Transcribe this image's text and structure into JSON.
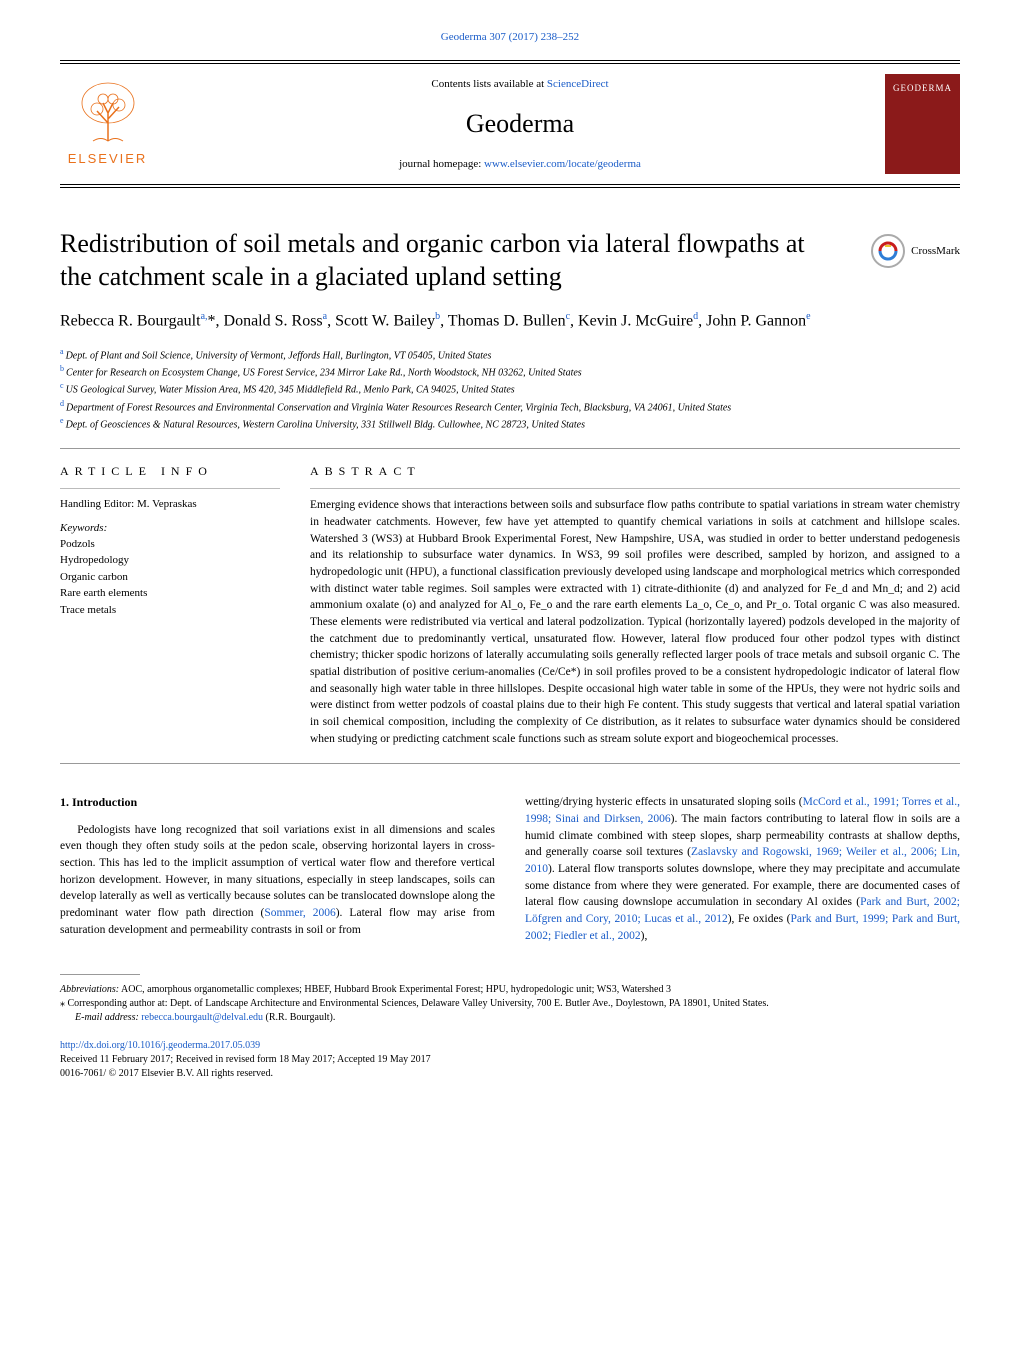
{
  "header": {
    "citation": "Geoderma 307 (2017) 238–252",
    "contents_prefix": "Contents lists available at ",
    "contents_link": "ScienceDirect",
    "journal_name": "Geoderma",
    "homepage_prefix": "journal homepage: ",
    "homepage_link": "www.elsevier.com/locate/geoderma",
    "publisher_wordmark": "ELSEVIER",
    "cover_title": "GEODERMA"
  },
  "article": {
    "title": "Redistribution of soil metals and organic carbon via lateral flowpaths at the catchment scale in a glaciated upland setting",
    "crossmark_label": "CrossMark",
    "authors_html": "Rebecca R. Bourgault<sup>a,</sup>*, Donald S. Ross<sup>a</sup>, Scott W. Bailey<sup>b</sup>, Thomas D. Bullen<sup>c</sup>, Kevin J. McGuire<sup>d</sup>, John P. Gannon<sup>e</sup>",
    "affiliations": [
      {
        "sup": "a",
        "text": "Dept. of Plant and Soil Science, University of Vermont, Jeffords Hall, Burlington, VT 05405, United States"
      },
      {
        "sup": "b",
        "text": "Center for Research on Ecosystem Change, US Forest Service, 234 Mirror Lake Rd., North Woodstock, NH 03262, United States"
      },
      {
        "sup": "c",
        "text": "US Geological Survey, Water Mission Area, MS 420, 345 Middlefield Rd., Menlo Park, CA 94025, United States"
      },
      {
        "sup": "d",
        "text": "Department of Forest Resources and Environmental Conservation and Virginia Water Resources Research Center, Virginia Tech, Blacksburg, VA 24061, United States"
      },
      {
        "sup": "e",
        "text": "Dept. of Geosciences & Natural Resources, Western Carolina University, 331 Stillwell Bldg. Cullowhee, NC 28723, United States"
      }
    ]
  },
  "info": {
    "heading": "ARTICLE INFO",
    "editor_line": "Handling Editor: M. Vepraskas",
    "keywords_label": "Keywords:",
    "keywords": [
      "Podzols",
      "Hydropedology",
      "Organic carbon",
      "Rare earth elements",
      "Trace metals"
    ]
  },
  "abstract": {
    "heading": "ABSTRACT",
    "text": "Emerging evidence shows that interactions between soils and subsurface flow paths contribute to spatial variations in stream water chemistry in headwater catchments. However, few have yet attempted to quantify chemical variations in soils at catchment and hillslope scales. Watershed 3 (WS3) at Hubbard Brook Experimental Forest, New Hampshire, USA, was studied in order to better understand pedogenesis and its relationship to subsurface water dynamics. In WS3, 99 soil profiles were described, sampled by horizon, and assigned to a hydropedologic unit (HPU), a functional classification previously developed using landscape and morphological metrics which corresponded with distinct water table regimes. Soil samples were extracted with 1) citrate-dithionite (d) and analyzed for Fe_d and Mn_d; and 2) acid ammonium oxalate (o) and analyzed for Al_o, Fe_o and the rare earth elements La_o, Ce_o, and Pr_o. Total organic C was also measured. These elements were redistributed via vertical and lateral podzolization. Typical (horizontally layered) podzols developed in the majority of the catchment due to predominantly vertical, unsaturated flow. However, lateral flow produced four other podzol types with distinct chemistry; thicker spodic horizons of laterally accumulating soils generally reflected larger pools of trace metals and subsoil organic C. The spatial distribution of positive cerium-anomalies (Ce/Ce*) in soil profiles proved to be a consistent hydropedologic indicator of lateral flow and seasonally high water table in three hillslopes. Despite occasional high water table in some of the HPUs, they were not hydric soils and were distinct from wetter podzols of coastal plains due to their high Fe content. This study suggests that vertical and lateral spatial variation in soil chemical composition, including the complexity of Ce distribution, as it relates to subsurface water dynamics should be considered when studying or predicting catchment scale functions such as stream solute export and biogeochemical processes."
  },
  "body": {
    "section_heading": "1. Introduction",
    "col1": "Pedologists have long recognized that soil variations exist in all dimensions and scales even though they often study soils at the pedon scale, observing horizontal layers in cross-section. This has led to the implicit assumption of vertical water flow and therefore vertical horizon development. However, in many situations, especially in steep landscapes, soils can develop laterally as well as vertically because solutes can be translocated downslope along the predominant water flow path direction (",
    "ref1": "Sommer, 2006",
    "col1b": "). Lateral flow may arise from saturation development and permeability contrasts in soil or from",
    "col2a": "wetting/drying hysteric effects in unsaturated sloping soils (",
    "ref2": "McCord et al., 1991; Torres et al., 1998; Sinai and Dirksen, 2006",
    "col2b": "). The main factors contributing to lateral flow in soils are a humid climate combined with steep slopes, sharp permeability contrasts at shallow depths, and generally coarse soil textures (",
    "ref3": "Zaslavsky and Rogowski, 1969; Weiler et al., 2006; Lin, 2010",
    "col2c": "). Lateral flow transports solutes downslope, where they may precipitate and accumulate some distance from where they were generated. For example, there are documented cases of lateral flow causing downslope accumulation in secondary Al oxides (",
    "ref4": "Park and Burt, 2002; Löfgren and Cory, 2010; Lucas et al., 2012",
    "col2d": "), Fe oxides (",
    "ref5": "Park and Burt, 1999; Park and Burt, 2002; Fiedler et al., 2002",
    "col2e": "),"
  },
  "footer": {
    "abbrev_label": "Abbreviations:",
    "abbrev_text": " AOC, amorphous organometallic complexes; HBEF, Hubbard Brook Experimental Forest; HPU, hydropedologic unit; WS3, Watershed 3",
    "corr_text": "⁎ Corresponding author at: Dept. of Landscape Architecture and Environmental Sciences, Delaware Valley University, 700 E. Butler Ave., Doylestown, PA 18901, United States.",
    "email_label": "E-mail address: ",
    "email": "rebecca.bourgault@delval.edu",
    "email_suffix": " (R.R. Bourgault).",
    "doi": "http://dx.doi.org/10.1016/j.geoderma.2017.05.039",
    "received": "Received 11 February 2017; Received in revised form 18 May 2017; Accepted 19 May 2017",
    "copyright": "0016-7061/ © 2017 Elsevier B.V. All rights reserved."
  },
  "colors": {
    "link": "#1a5cc8",
    "elsevier_orange": "#e9711c",
    "cover_red": "#8b1a1a"
  }
}
